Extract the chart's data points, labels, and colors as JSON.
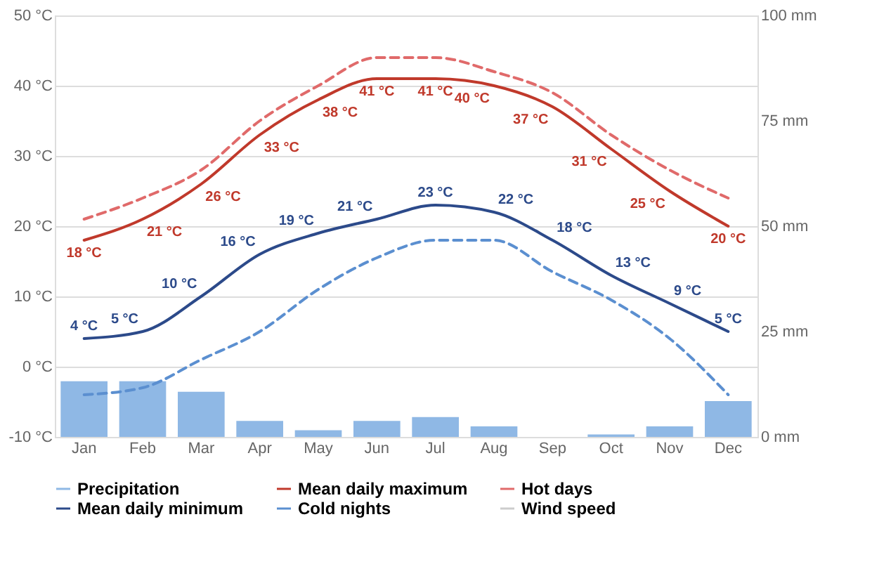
{
  "chart_data": {
    "type": "line",
    "categories": [
      "Jan",
      "Feb",
      "Mar",
      "Apr",
      "May",
      "Jun",
      "Jul",
      "Aug",
      "Sep",
      "Oct",
      "Nov",
      "Dec"
    ],
    "series": [
      {
        "name": "Precipitation",
        "type": "bar",
        "axis": "y2",
        "color": "#8fb8e5",
        "values": [
          13.2,
          13.2,
          10.7,
          3.8,
          1.6,
          3.8,
          4.7,
          2.5,
          0,
          0.6,
          2.5,
          8.5
        ]
      },
      {
        "name": "Mean daily maximum",
        "color": "#c0392b",
        "line_style": "solid",
        "values": [
          18,
          21,
          26,
          33,
          38,
          41,
          41,
          40,
          37,
          31,
          25,
          20
        ],
        "value_labels": [
          "18 °C",
          "21 °C",
          "26 °C",
          "33 °C",
          "38 °C",
          "41 °C",
          "41 °C",
          "40 °C",
          "37 °C",
          "31 °C",
          "25 °C",
          "20 °C"
        ]
      },
      {
        "name": "Hot days",
        "color": "#e06a6a",
        "line_style": "dashed",
        "values": [
          21,
          24,
          28,
          35,
          40,
          44,
          44,
          42,
          39,
          33,
          28,
          24
        ]
      },
      {
        "name": "Mean daily minimum",
        "color": "#2c4a8a",
        "line_style": "solid",
        "values": [
          4,
          5,
          10,
          16,
          19,
          21,
          23,
          22,
          18,
          13,
          9,
          5
        ],
        "value_labels": [
          "4 °C",
          "5 °C",
          "10 °C",
          "16 °C",
          "19 °C",
          "21 °C",
          "23 °C",
          "22 °C",
          "18 °C",
          "13 °C",
          "9 °C",
          "5 °C"
        ]
      },
      {
        "name": "Cold nights",
        "color": "#5b8fd0",
        "line_style": "dashed",
        "values": [
          -4,
          -3,
          1,
          5,
          11,
          15.5,
          18,
          18,
          13.5,
          9.5,
          4,
          -4
        ]
      },
      {
        "name": "Wind speed",
        "color": "#cccccc",
        "line_style": "solid",
        "values": [
          null,
          null,
          null,
          null,
          null,
          null,
          null,
          null,
          null,
          null,
          null,
          null
        ]
      }
    ],
    "ylim": [
      -10,
      50
    ],
    "yticks": [
      {
        "value": -10,
        "label": "-10 °C"
      },
      {
        "value": 0,
        "label": "0 °C"
      },
      {
        "value": 10,
        "label": "10 °C"
      },
      {
        "value": 20,
        "label": "20 °C"
      },
      {
        "value": 30,
        "label": "30 °C"
      },
      {
        "value": 40,
        "label": "40 °C"
      },
      {
        "value": 50,
        "label": "50 °C"
      }
    ],
    "y2lim": [
      0,
      100
    ],
    "y2ticks": [
      {
        "value": 0,
        "label": "0 mm"
      },
      {
        "value": 25,
        "label": "25 mm"
      },
      {
        "value": 50,
        "label": "50 mm"
      },
      {
        "value": 75,
        "label": "75 mm"
      },
      {
        "value": 100,
        "label": "100 mm"
      }
    ],
    "grid": "y",
    "legend": "bottom"
  }
}
